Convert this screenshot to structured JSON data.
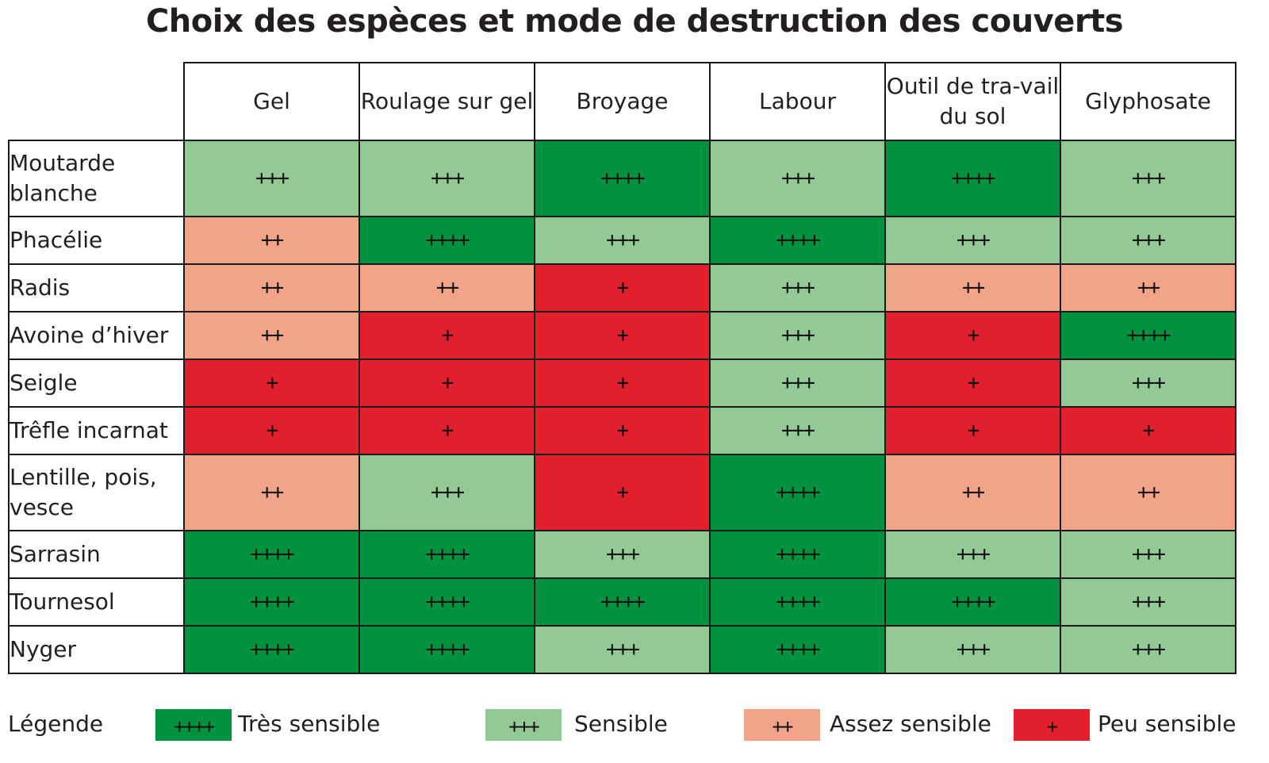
{
  "title": "Choix des espèces et mode de destruction des couverts",
  "colors": {
    "4": "#00923f",
    "3": "#93c994",
    "2": "#f2a489",
    "1": "#e21f2d"
  },
  "symbols": {
    "4": "++++",
    "3": "+++",
    "2": "++",
    "1": "+"
  },
  "legend": {
    "label": "Légende",
    "items": [
      {
        "level": 4,
        "symbol": "++++",
        "text": "Très sensible"
      },
      {
        "level": 3,
        "symbol": "+++",
        "text": "Sensible"
      },
      {
        "level": 2,
        "symbol": "++",
        "text": "Assez sensible"
      },
      {
        "level": 1,
        "symbol": "+",
        "text": "Peu sensible"
      }
    ]
  },
  "chart_data": {
    "type": "heatmap",
    "title": "Choix des espèces et mode de destruction des couverts",
    "columns": [
      "Gel",
      "Roulage sur gel",
      "Broyage",
      "Labour",
      "Outil de tra-vail du sol",
      "Glyphosate"
    ],
    "rows": [
      {
        "name": "Moutarde blanche",
        "values": [
          3,
          3,
          4,
          3,
          4,
          3
        ]
      },
      {
        "name": "Phacélie",
        "values": [
          2,
          4,
          3,
          4,
          3,
          3
        ]
      },
      {
        "name": "Radis",
        "values": [
          2,
          2,
          1,
          3,
          2,
          2
        ]
      },
      {
        "name": "Avoine d’hiver",
        "values": [
          2,
          1,
          1,
          3,
          1,
          4
        ]
      },
      {
        "name": "Seigle",
        "values": [
          1,
          1,
          1,
          3,
          1,
          3
        ]
      },
      {
        "name": "Trêfle incarnat",
        "values": [
          1,
          1,
          1,
          3,
          1,
          1
        ]
      },
      {
        "name": "Lentille, pois, vesce",
        "values": [
          2,
          3,
          1,
          4,
          2,
          2
        ]
      },
      {
        "name": "Sarrasin",
        "values": [
          4,
          4,
          3,
          4,
          3,
          3
        ]
      },
      {
        "name": "Tournesol",
        "values": [
          4,
          4,
          4,
          4,
          4,
          3
        ]
      },
      {
        "name": "Nyger",
        "values": [
          4,
          4,
          3,
          4,
          3,
          3
        ]
      }
    ],
    "value_scale": {
      "4": "Très sensible",
      "3": "Sensible",
      "2": "Assez sensible",
      "1": "Peu sensible"
    },
    "legend_position": "bottom"
  }
}
